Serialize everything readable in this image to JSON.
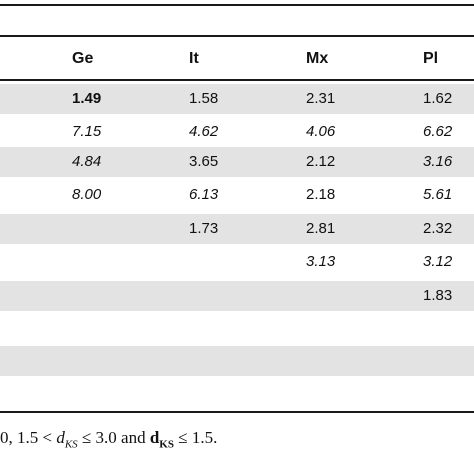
{
  "table": {
    "headers": [
      "Ge",
      "It",
      "Mx",
      "Pl"
    ],
    "rows": [
      [
        {
          "v": "1.49",
          "s": "bold"
        },
        {
          "v": "1.58",
          "s": ""
        },
        {
          "v": "2.31",
          "s": ""
        },
        {
          "v": "1.62",
          "s": ""
        }
      ],
      [
        {
          "v": "7.15",
          "s": "italic"
        },
        {
          "v": "4.62",
          "s": "italic"
        },
        {
          "v": "4.06",
          "s": "italic"
        },
        {
          "v": "6.62",
          "s": "italic"
        }
      ],
      [
        {
          "v": "4.84",
          "s": "italic"
        },
        {
          "v": "3.65",
          "s": ""
        },
        {
          "v": "2.12",
          "s": ""
        },
        {
          "v": "3.16",
          "s": "italic"
        }
      ],
      [
        {
          "v": "8.00",
          "s": "italic"
        },
        {
          "v": "6.13",
          "s": "italic"
        },
        {
          "v": "2.18",
          "s": ""
        },
        {
          "v": "5.61",
          "s": "italic"
        }
      ],
      [
        {
          "v": "",
          "s": ""
        },
        {
          "v": "1.73",
          "s": ""
        },
        {
          "v": "2.81",
          "s": ""
        },
        {
          "v": "2.32",
          "s": ""
        }
      ],
      [
        {
          "v": "",
          "s": ""
        },
        {
          "v": "",
          "s": ""
        },
        {
          "v": "3.13",
          "s": "italic"
        },
        {
          "v": "3.12",
          "s": "italic"
        }
      ],
      [
        {
          "v": "",
          "s": ""
        },
        {
          "v": "",
          "s": ""
        },
        {
          "v": "",
          "s": ""
        },
        {
          "v": "1.83",
          "s": ""
        }
      ],
      [
        {
          "v": "",
          "s": ""
        },
        {
          "v": "",
          "s": ""
        },
        {
          "v": "",
          "s": ""
        },
        {
          "v": "",
          "s": ""
        }
      ],
      [
        {
          "v": "",
          "s": ""
        },
        {
          "v": "",
          "s": ""
        },
        {
          "v": "",
          "s": ""
        },
        {
          "v": "",
          "s": ""
        }
      ]
    ],
    "shading": [
      true,
      false,
      true,
      false,
      true,
      false,
      true,
      false,
      true
    ]
  },
  "footnote": {
    "prefix": "0, 1.5 < ",
    "d_italic": "d",
    "sub_ks_italic": "KS",
    "middle": " ≤ 3.0 and ",
    "d_bold": "d",
    "sub_ks_bold": "KS",
    "suffix": " ≤ 1.5."
  }
}
